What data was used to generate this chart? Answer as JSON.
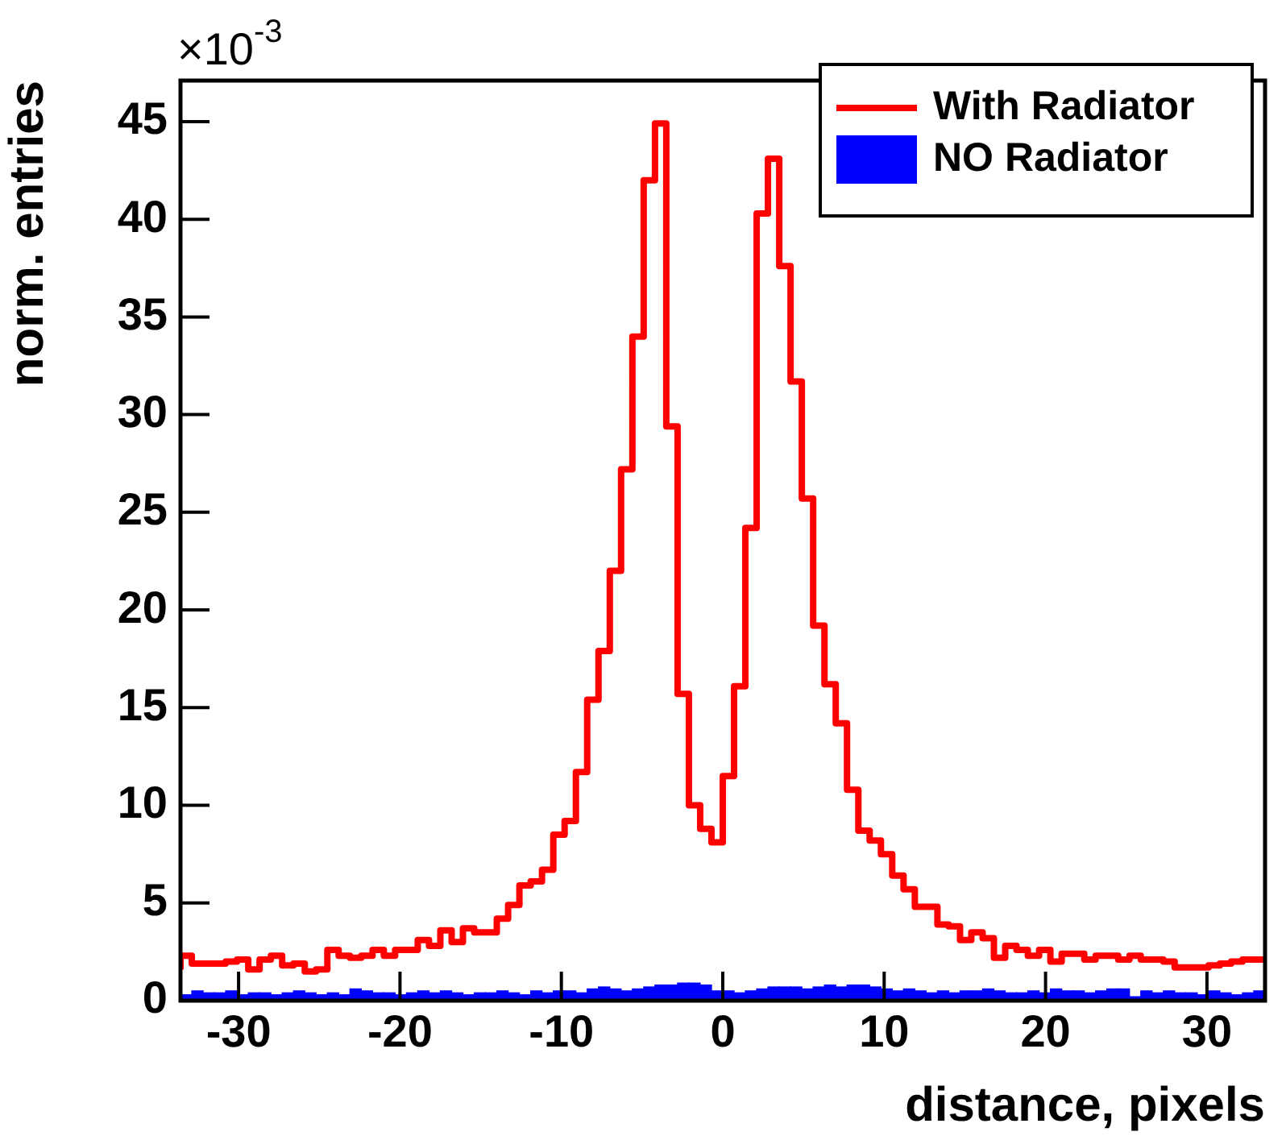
{
  "chart_data": {
    "type": "histogram",
    "xlabel": "distance, pixels",
    "ylabel": "norm. entries",
    "annotations": [
      "×10$^{-3}$"
    ],
    "bins": [
      -33.6,
      -32.9,
      -32.2,
      -31.5,
      -30.8,
      -30.1,
      -29.4,
      -28.7,
      -28.0,
      -27.3,
      -26.6,
      -25.9,
      -25.2,
      -24.5,
      -23.8,
      -23.1,
      -22.4,
      -21.7,
      -21.0,
      -20.3,
      -19.6,
      -18.9,
      -18.2,
      -17.5,
      -16.8,
      -16.1,
      -15.4,
      -14.7,
      -14.0,
      -13.3,
      -12.6,
      -11.9,
      -11.2,
      -10.5,
      -9.8,
      -9.1,
      -8.4,
      -7.7,
      -7.0,
      -6.3,
      -5.6,
      -4.9,
      -4.2,
      -3.5,
      -2.8,
      -2.1,
      -1.4,
      -0.7,
      0,
      0.7,
      1.4,
      2.1,
      2.8,
      3.5,
      4.2,
      4.9,
      5.6,
      6.3,
      7.0,
      7.7,
      8.4,
      9.1,
      9.8,
      10.5,
      11.2,
      11.9,
      12.6,
      13.3,
      14.0,
      14.7,
      15.4,
      16.1,
      16.8,
      17.5,
      18.2,
      18.9,
      19.6,
      20.3,
      21.0,
      21.7,
      22.4,
      23.1,
      23.8,
      24.5,
      25.2,
      25.9,
      26.6,
      27.3,
      28.0,
      28.7,
      29.4,
      30.1,
      30.8,
      31.5,
      32.2,
      32.9,
      33.6
    ],
    "series": [
      {
        "name": "With Radiator",
        "color": "#ff0000",
        "type": "step",
        "x": [
          -33.6,
          -32.9,
          -32.2,
          -31.5,
          -30.8,
          -30.1,
          -29.4,
          -28.7,
          -28.0,
          -27.3,
          -26.6,
          -25.9,
          -25.2,
          -24.5,
          -23.8,
          -23.1,
          -22.4,
          -21.7,
          -21.0,
          -20.3,
          -19.6,
          -18.9,
          -18.2,
          -17.5,
          -16.8,
          -16.1,
          -15.4,
          -14.7,
          -14.0,
          -13.3,
          -12.6,
          -11.9,
          -11.2,
          -10.5,
          -9.8,
          -9.1,
          -8.4,
          -7.7,
          -7.0,
          -6.3,
          -5.6,
          -4.9,
          -4.2,
          -3.5,
          -2.8,
          -2.1,
          -1.4,
          -0.7,
          0,
          0.7,
          1.4,
          2.1,
          2.8,
          3.5,
          4.2,
          4.9,
          5.6,
          6.3,
          7.0,
          7.7,
          8.4,
          9.1,
          9.8,
          10.5,
          11.2,
          11.9,
          12.6,
          13.3,
          14.0,
          14.7,
          15.4,
          16.1,
          16.8,
          17.5,
          18.2,
          18.9,
          19.6,
          20.3,
          21.0,
          21.7,
          22.4,
          23.1,
          23.8,
          24.5,
          25.2,
          25.9,
          26.6,
          27.3,
          28.0,
          28.7,
          29.4,
          30.1,
          30.8,
          31.5,
          32.2,
          32.9,
          33.6
        ],
        "values": [
          1.6,
          2.3,
          1.9,
          1.9,
          1.9,
          2.0,
          2.1,
          1.6,
          2.1,
          2.3,
          1.8,
          1.9,
          1.5,
          1.6,
          2.6,
          2.3,
          2.2,
          2.3,
          2.6,
          2.3,
          2.6,
          2.6,
          3.1,
          2.8,
          3.6,
          3.0,
          3.7,
          3.5,
          3.5,
          4.2,
          4.9,
          5.9,
          6.1,
          6.7,
          8.5,
          9.2,
          11.7,
          15.4,
          17.9,
          22.0,
          27.2,
          34.0,
          42.0,
          44.9,
          29.4,
          15.7,
          10.0,
          8.8,
          8.1,
          11.5,
          16.1,
          24.2,
          40.3,
          43.1,
          37.6,
          31.7,
          25.7,
          19.2,
          16.2,
          14.2,
          10.8,
          8.7,
          8.2,
          7.5,
          6.4,
          5.7,
          4.8,
          4.8,
          3.9,
          3.8,
          3.1,
          3.5,
          3.2,
          2.2,
          2.8,
          2.6,
          2.3,
          2.6,
          2.0,
          2.4,
          2.4,
          2.1,
          2.3,
          2.3,
          2.1,
          2.3,
          2.1,
          2.1,
          2.0,
          1.7,
          1.7,
          1.7,
          1.8,
          1.9,
          2.0,
          2.1,
          2.1
        ]
      },
      {
        "name": "NO Radiator",
        "color": "#0000ff",
        "values": [
          0.3,
          0.5,
          0.4,
          0.4,
          0.5,
          0.3,
          0.4,
          0.4,
          0.3,
          0.4,
          0.5,
          0.4,
          0.3,
          0.4,
          0.3,
          0.6,
          0.5,
          0.4,
          0.4,
          0.3,
          0.4,
          0.5,
          0.4,
          0.5,
          0.4,
          0.3,
          0.4,
          0.4,
          0.5,
          0.4,
          0.3,
          0.5,
          0.4,
          0.5,
          0.5,
          0.4,
          0.6,
          0.7,
          0.6,
          0.5,
          0.6,
          0.7,
          0.8,
          0.8,
          0.9,
          0.9,
          0.8,
          0.5,
          0.5,
          0.4,
          0.5,
          0.6,
          0.7,
          0.7,
          0.7,
          0.6,
          0.7,
          0.8,
          0.7,
          0.8,
          0.8,
          0.7,
          0.6,
          0.5,
          0.6,
          0.5,
          0.4,
          0.5,
          0.4,
          0.5,
          0.5,
          0.6,
          0.5,
          0.4,
          0.4,
          0.5,
          0.4,
          0.6,
          0.5,
          0.5,
          0.4,
          0.5,
          0.6,
          0.6,
          0.2,
          0.5,
          0.4,
          0.5,
          0.4,
          0.4,
          0.3,
          0.5,
          0.4,
          0.3,
          0.4,
          0.5
        ]
      }
    ],
    "xlim": [
      -33.6,
      33.6
    ],
    "xticks": [
      -30,
      -20,
      -10,
      0,
      10,
      20,
      30
    ],
    "ylim": [
      0,
      47.1
    ],
    "yticks": [
      0,
      5,
      10,
      15,
      20,
      25,
      30,
      35,
      40,
      45
    ],
    "grid": false,
    "legend": "top right"
  }
}
